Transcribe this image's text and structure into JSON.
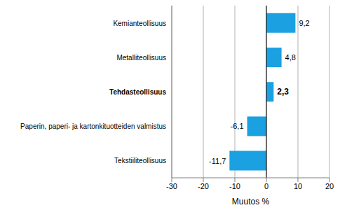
{
  "chart_data": {
    "type": "bar",
    "orientation": "horizontal",
    "categories": [
      "Kemianteollisuus",
      "Metalliteollisuus",
      "Tehdasteollisuus",
      "Paperin, paperi- ja kartonkituotteiden valmistus",
      "Tekstiiliteollisuus"
    ],
    "values": [
      9.2,
      4.8,
      2.3,
      -6.1,
      -11.7
    ],
    "value_labels": [
      "9,2",
      "4,8",
      "2,3",
      "-6,1",
      "-11,7"
    ],
    "data_labels": true,
    "color": "#1ba1e2",
    "x_label": "Muutos %",
    "xlim": [
      -30,
      20
    ],
    "xticks": [
      -30,
      -20,
      -10,
      0,
      10,
      20
    ],
    "grid": true
  }
}
